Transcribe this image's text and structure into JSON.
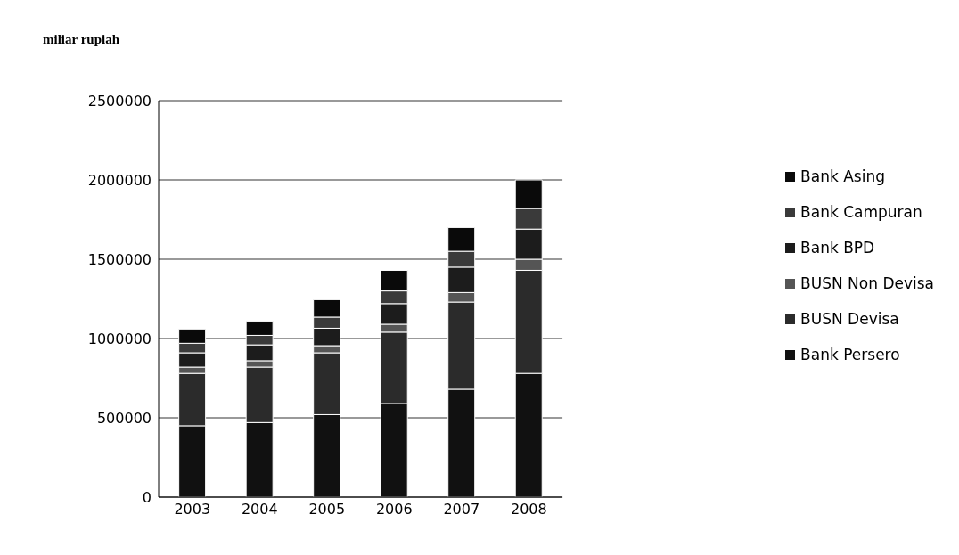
{
  "chart_data": {
    "type": "bar",
    "stacked": true,
    "ylabel": "miliar rupiah",
    "categories": [
      "2003",
      "2004",
      "2005",
      "2006",
      "2007",
      "2008"
    ],
    "series": [
      {
        "name": "Bank Persero",
        "color": "#111111",
        "values": [
          450000,
          470000,
          520000,
          590000,
          680000,
          780000
        ]
      },
      {
        "name": "BUSN Devisa",
        "color": "#2b2b2b",
        "values": [
          330000,
          350000,
          390000,
          450000,
          550000,
          650000
        ]
      },
      {
        "name": "BUSN Non Devisa",
        "color": "#555555",
        "values": [
          40000,
          40000,
          45000,
          50000,
          60000,
          70000
        ]
      },
      {
        "name": "Bank BPD",
        "color": "#1c1c1c",
        "values": [
          90000,
          100000,
          110000,
          130000,
          160000,
          190000
        ]
      },
      {
        "name": "Bank Campuran",
        "color": "#3a3a3a",
        "values": [
          60000,
          60000,
          70000,
          80000,
          100000,
          130000
        ]
      },
      {
        "name": "Bank Asing",
        "color": "#0a0a0a",
        "values": [
          90000,
          90000,
          110000,
          130000,
          150000,
          180000
        ]
      }
    ],
    "ylim": [
      0,
      2500000
    ],
    "yticks": [
      0,
      500000,
      1000000,
      1500000,
      2000000,
      2500000
    ],
    "grid": "y",
    "legend": "right"
  }
}
